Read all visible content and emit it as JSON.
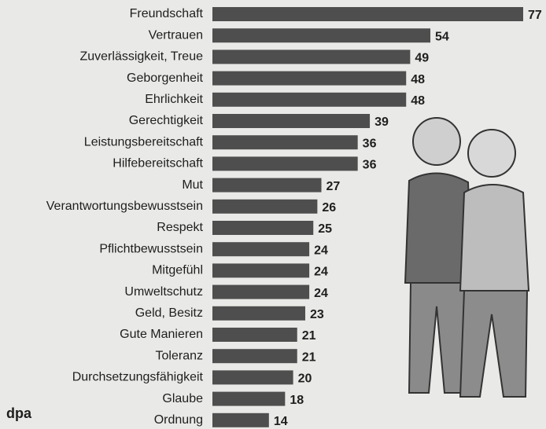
{
  "chart_data": {
    "type": "bar",
    "orientation": "horizontal",
    "categories": [
      "Freundschaft",
      "Vertrauen",
      "Zuverlässigkeit, Treue",
      "Geborgenheit",
      "Ehrlichkeit",
      "Gerechtigkeit",
      "Leistungsbereitschaft",
      "Hilfebereitschaft",
      "Mut",
      "Verantwortungsbewusstsein",
      "Respekt",
      "Pflichtbewusstsein",
      "Mitgefühl",
      "Umweltschutz",
      "Geld, Besitz",
      "Gute Manieren",
      "Toleranz",
      "Durchsetzungsfähigkeit",
      "Glaube",
      "Ordnung"
    ],
    "values": [
      77,
      54,
      49,
      48,
      48,
      39,
      36,
      36,
      27,
      26,
      25,
      24,
      24,
      24,
      23,
      21,
      21,
      20,
      18,
      14
    ],
    "color": "#4e4e4e",
    "source": "dpa"
  }
}
